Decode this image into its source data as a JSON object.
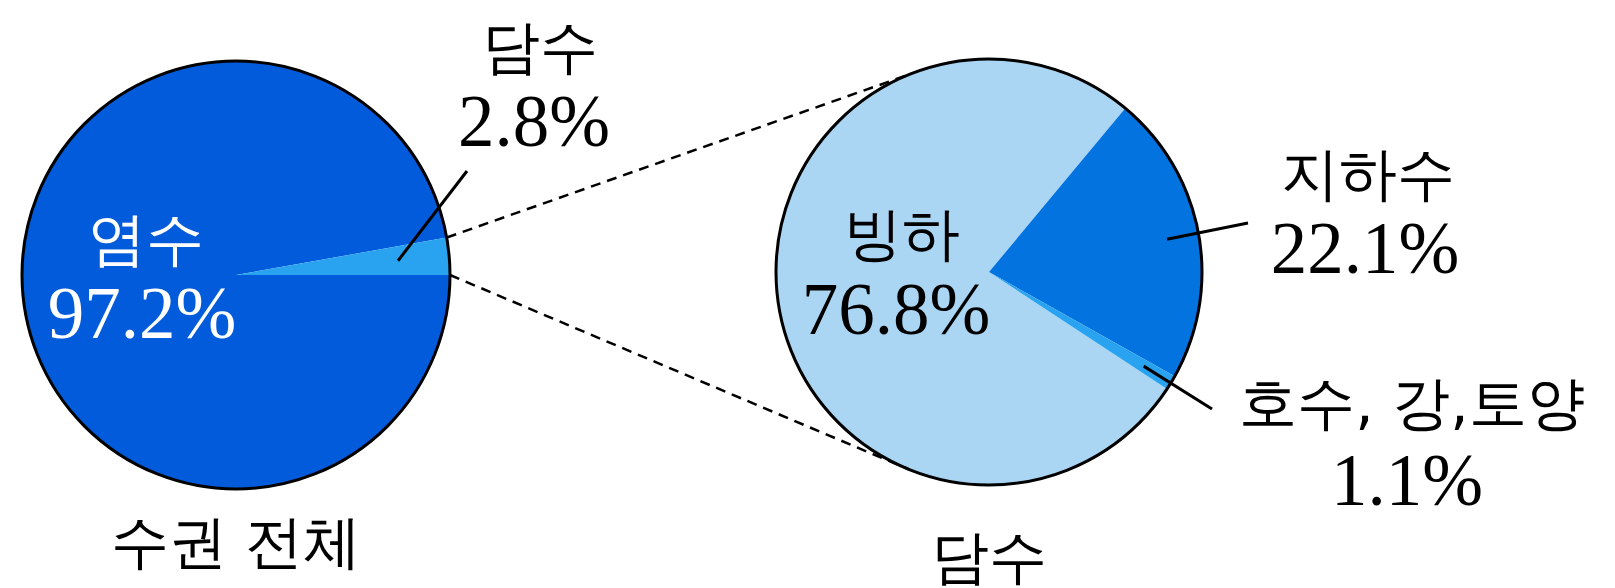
{
  "chart_data": [
    {
      "type": "pie",
      "title": "수권 전체",
      "categories": [
        "염수",
        "담수"
      ],
      "values": [
        97.2,
        2.8
      ],
      "colors": [
        "#015bdb",
        "#29a3f0"
      ],
      "value_labels": [
        "97.2%",
        "2.8%"
      ]
    },
    {
      "type": "pie",
      "title": "담수",
      "categories": [
        "빙하",
        "지하수",
        "호수, 강,토양"
      ],
      "values": [
        76.8,
        22.1,
        1.1
      ],
      "colors": [
        "#aad6f4",
        "#0273df",
        "#29a3f0"
      ],
      "value_labels": [
        "76.8%",
        "22.1%",
        "1.1%"
      ]
    }
  ]
}
